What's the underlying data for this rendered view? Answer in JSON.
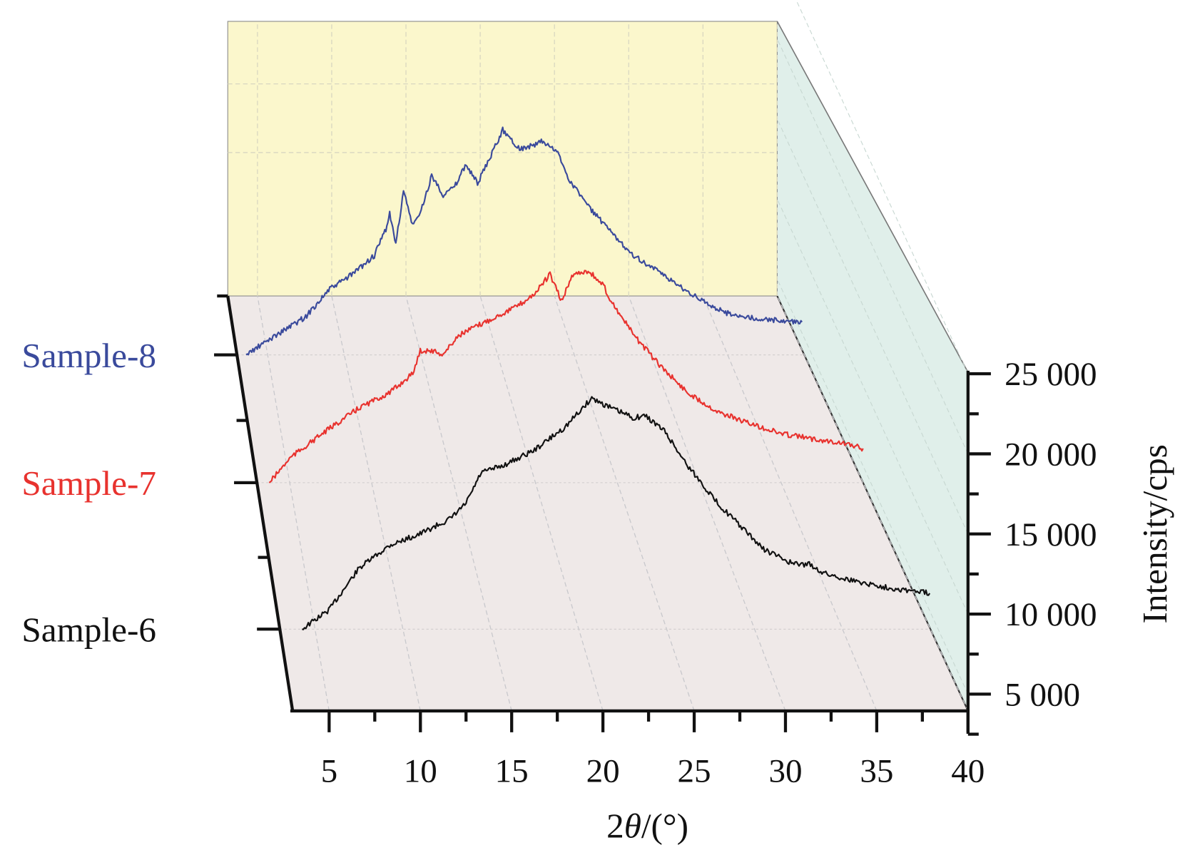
{
  "chart_data": {
    "type": "line",
    "subtype": "3d-waterfall",
    "xlabel_prefix": "2",
    "xlabel_theta": "θ",
    "xlabel_suffix": "/(°)",
    "ylabel": "Intensity/cps",
    "xlim": [
      3,
      40
    ],
    "x_ticks": [
      "5",
      "10",
      "15",
      "20",
      "25",
      "30",
      "35",
      "40"
    ],
    "x_tick_values": [
      5,
      10,
      15,
      20,
      25,
      30,
      35,
      40
    ],
    "y_ticks": [
      "25 000",
      "20 000",
      "15 000",
      "10 000",
      "5 000"
    ],
    "y_tick_values": [
      25000,
      20000,
      15000,
      10000,
      5000
    ],
    "grid": true,
    "colors": {
      "back_wall": "#fbf7cc",
      "floor": "#efe9e8",
      "side_wall": "#e0efea"
    },
    "series": [
      {
        "name": "Sample-6",
        "color": "#111111",
        "points": [
          [
            4.26,
            9000
          ],
          [
            5.78,
            10190
          ],
          [
            7.51,
            12810
          ],
          [
            9.25,
            14240
          ],
          [
            10.98,
            14950
          ],
          [
            12.72,
            15900
          ],
          [
            13.59,
            16860
          ],
          [
            14.45,
            18760
          ],
          [
            15.75,
            19240
          ],
          [
            17.49,
            20190
          ],
          [
            19.23,
            21620
          ],
          [
            20.74,
            23430
          ],
          [
            21.83,
            22810
          ],
          [
            23.13,
            22190
          ],
          [
            23.78,
            22330
          ],
          [
            24.87,
            21380
          ],
          [
            26.17,
            19240
          ],
          [
            27.9,
            16860
          ],
          [
            29.2,
            15430
          ],
          [
            30.5,
            14000
          ],
          [
            32.24,
            13050
          ],
          [
            33.11,
            13050
          ],
          [
            33.98,
            12480
          ],
          [
            35.71,
            12000
          ],
          [
            37.45,
            11620
          ],
          [
            39.96,
            11240
          ]
        ]
      },
      {
        "name": "Sample-7",
        "color": "#e8322e",
        "points": [
          [
            3.75,
            9000
          ],
          [
            5.05,
            10570
          ],
          [
            6.91,
            12000
          ],
          [
            9.24,
            13670
          ],
          [
            11.11,
            14620
          ],
          [
            12.51,
            15810
          ],
          [
            12.97,
            17240
          ],
          [
            13.67,
            17240
          ],
          [
            14.37,
            17000
          ],
          [
            15.3,
            18190
          ],
          [
            16.23,
            18670
          ],
          [
            17.63,
            19380
          ],
          [
            19.03,
            20100
          ],
          [
            19.96,
            20810
          ],
          [
            20.89,
            22000
          ],
          [
            21.59,
            20330
          ],
          [
            22.29,
            22000
          ],
          [
            23.22,
            22240
          ],
          [
            24.16,
            21290
          ],
          [
            24.62,
            20330
          ],
          [
            26.02,
            18190
          ],
          [
            27.42,
            16520
          ],
          [
            29.28,
            14620
          ],
          [
            31.15,
            13430
          ],
          [
            33.01,
            12710
          ],
          [
            34.87,
            12100
          ],
          [
            36.74,
            11760
          ],
          [
            38.6,
            11520
          ],
          [
            40.0,
            11140
          ]
        ]
      },
      {
        "name": "Sample-8",
        "color": "#3a4a9c",
        "points": [
          [
            3.6,
            9000
          ],
          [
            5.49,
            10190
          ],
          [
            7.48,
            11380
          ],
          [
            8.98,
            13050
          ],
          [
            10.47,
            14000
          ],
          [
            11.96,
            15190
          ],
          [
            12.71,
            16860
          ],
          [
            12.96,
            17810
          ],
          [
            13.36,
            15900
          ],
          [
            13.86,
            19240
          ],
          [
            14.45,
            17100
          ],
          [
            14.95,
            17810
          ],
          [
            15.7,
            20190
          ],
          [
            16.45,
            19000
          ],
          [
            17.19,
            19480
          ],
          [
            17.94,
            20900
          ],
          [
            18.69,
            19710
          ],
          [
            19.43,
            21140
          ],
          [
            20.33,
            23050
          ],
          [
            21.43,
            21860
          ],
          [
            22.42,
            22100
          ],
          [
            22.92,
            22330
          ],
          [
            23.92,
            21620
          ],
          [
            24.66,
            19950
          ],
          [
            25.91,
            18290
          ],
          [
            27.4,
            16620
          ],
          [
            28.9,
            15190
          ],
          [
            30.39,
            14240
          ],
          [
            31.88,
            13290
          ],
          [
            33.38,
            12330
          ],
          [
            34.87,
            11620
          ],
          [
            36.86,
            11240
          ],
          [
            39.85,
            11050
          ]
        ]
      }
    ]
  }
}
